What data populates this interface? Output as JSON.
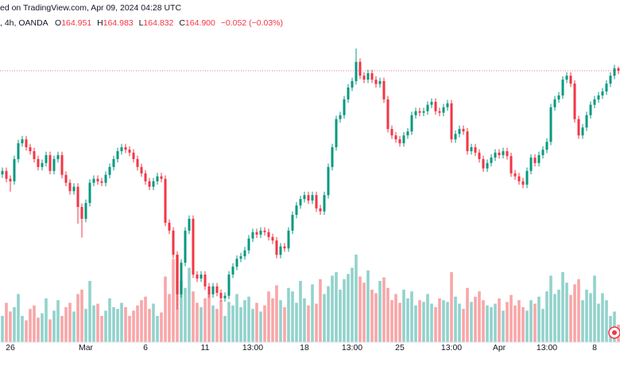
{
  "chart_data": {
    "type": "candlestick",
    "header": {
      "source": "ed on TradingView.com, Apr 09, 2024 04:28 UTC",
      "symbol": ", 4h, OANDA"
    },
    "legend": {
      "labels": [
        "O",
        "H",
        "L",
        "C"
      ],
      "values": [
        "164.951",
        "164.983",
        "164.832",
        "164.900"
      ],
      "change": "−0.052 (−0.03%)"
    },
    "categories": [
      null,
      null,
      "26",
      null,
      null,
      null,
      null,
      null,
      null,
      null,
      null,
      null,
      null,
      null,
      null,
      null,
      null,
      null,
      null,
      null,
      null,
      "Mar",
      null,
      null,
      null,
      null,
      null,
      null,
      null,
      null,
      null,
      null,
      null,
      null,
      null,
      null,
      "6",
      null,
      null,
      null,
      null,
      null,
      null,
      null,
      null,
      null,
      null,
      null,
      null,
      null,
      null,
      "11",
      null,
      null,
      null,
      null,
      null,
      null,
      null,
      null,
      null,
      null,
      null,
      "13:00",
      null,
      null,
      null,
      null,
      null,
      null,
      null,
      null,
      null,
      null,
      null,
      null,
      "18",
      null,
      null,
      null,
      null,
      null,
      null,
      null,
      null,
      null,
      null,
      null,
      "13:00",
      null,
      null,
      null,
      null,
      null,
      null,
      null,
      null,
      null,
      null,
      null,
      "25",
      null,
      null,
      null,
      null,
      null,
      null,
      null,
      null,
      null,
      null,
      null,
      null,
      "13:00",
      null,
      null,
      null,
      null,
      null,
      null,
      null,
      null,
      null,
      null,
      null,
      "Apr",
      null,
      null,
      null,
      null,
      null,
      null,
      null,
      null,
      null,
      null,
      null,
      "13:00",
      null,
      null,
      null,
      null,
      null,
      null,
      null,
      null,
      null,
      null,
      null,
      "8",
      null,
      null,
      null,
      null,
      null,
      null
    ],
    "open": [
      162.8,
      162.87,
      162.71,
      162.66,
      163.11,
      163.43,
      163.51,
      163.35,
      163.27,
      163.11,
      162.95,
      163.03,
      163.19,
      162.87,
      163.11,
      163.19,
      162.79,
      162.63,
      162.46,
      162.55,
      162.14,
      161.9,
      162.22,
      162.63,
      162.71,
      162.66,
      162.63,
      162.79,
      162.95,
      163.11,
      163.27,
      163.35,
      163.3,
      163.24,
      163.11,
      162.95,
      162.82,
      162.66,
      162.55,
      162.66,
      162.76,
      162.71,
      161.82,
      161.66,
      161.17,
      160.37,
      161.01,
      161.66,
      161.9,
      160.77,
      160.69,
      160.77,
      160.53,
      160.37,
      160.53,
      160.4,
      160.29,
      160.34,
      160.77,
      160.93,
      161.09,
      161.14,
      161.26,
      161.5,
      161.63,
      161.58,
      161.66,
      161.63,
      161.53,
      161.46,
      161.17,
      161.34,
      161.3,
      161.66,
      161.98,
      162.17,
      162.3,
      162.38,
      162.27,
      162.38,
      162.11,
      162.05,
      162.38,
      162.95,
      163.35,
      163.92,
      164.0,
      164.32,
      164.56,
      164.69,
      165.08,
      164.8,
      164.72,
      164.85,
      164.72,
      164.63,
      164.69,
      164.32,
      163.72,
      163.59,
      163.51,
      163.43,
      163.59,
      163.67,
      164.0,
      164.08,
      164.05,
      164.08,
      164.21,
      164.27,
      164.08,
      164.05,
      164.16,
      164.24,
      163.51,
      163.62,
      163.72,
      163.67,
      163.27,
      163.35,
      163.24,
      163.11,
      162.92,
      163.03,
      163.14,
      163.24,
      163.19,
      163.27,
      163.17,
      162.82,
      162.76,
      162.66,
      162.59,
      162.87,
      163.14,
      163.03,
      163.19,
      163.3,
      163.46,
      164.16,
      164.32,
      164.4,
      164.72,
      164.8,
      164.64,
      163.92,
      163.59,
      163.75,
      164.0,
      164.21,
      164.32,
      164.4,
      164.48,
      164.64,
      164.8,
      164.951
    ],
    "high": [
      162.94,
      162.94,
      162.78,
      163.18,
      163.5,
      163.58,
      163.58,
      163.42,
      163.34,
      163.18,
      163.1,
      163.26,
      163.26,
      163.18,
      163.26,
      163.26,
      162.86,
      162.7,
      162.62,
      162.62,
      162.21,
      162.29,
      162.7,
      162.78,
      162.78,
      162.73,
      162.86,
      163.02,
      163.18,
      163.34,
      163.42,
      163.42,
      163.37,
      163.31,
      163.18,
      163.02,
      162.89,
      162.73,
      162.73,
      162.83,
      162.83,
      162.78,
      161.89,
      161.73,
      161.24,
      161.08,
      161.73,
      161.97,
      161.97,
      160.84,
      160.84,
      160.84,
      160.6,
      160.6,
      160.6,
      160.47,
      160.41,
      160.84,
      161.0,
      161.16,
      161.21,
      161.33,
      161.57,
      161.7,
      161.7,
      161.73,
      161.73,
      161.7,
      161.6,
      161.53,
      161.41,
      161.41,
      161.73,
      162.05,
      162.24,
      162.37,
      162.45,
      162.45,
      162.45,
      162.45,
      162.18,
      162.45,
      163.02,
      163.42,
      163.99,
      164.07,
      164.39,
      164.63,
      164.76,
      165.35,
      165.15,
      164.87,
      164.92,
      164.92,
      164.79,
      164.76,
      164.76,
      164.39,
      163.79,
      163.66,
      163.58,
      163.66,
      163.74,
      164.07,
      164.15,
      164.15,
      164.15,
      164.28,
      164.34,
      164.34,
      164.15,
      164.23,
      164.31,
      164.31,
      163.69,
      163.79,
      163.79,
      163.74,
      163.42,
      163.42,
      163.31,
      163.18,
      163.1,
      163.21,
      163.31,
      163.31,
      163.34,
      163.34,
      163.24,
      162.89,
      162.83,
      162.73,
      162.94,
      163.21,
      163.21,
      163.26,
      163.37,
      163.53,
      164.23,
      164.39,
      164.47,
      164.79,
      164.87,
      164.87,
      164.71,
      163.99,
      163.82,
      164.07,
      164.28,
      164.39,
      164.47,
      164.55,
      164.71,
      164.87,
      165.02,
      164.983
    ],
    "low": [
      162.73,
      162.64,
      162.45,
      162.59,
      163.04,
      163.36,
      163.28,
      163.2,
      163.04,
      162.88,
      162.88,
      162.96,
      162.8,
      162.8,
      163.04,
      162.72,
      162.56,
      162.39,
      162.39,
      161.8,
      161.52,
      161.83,
      162.15,
      162.56,
      162.59,
      162.56,
      162.56,
      162.72,
      162.88,
      163.04,
      163.2,
      163.23,
      163.17,
      163.04,
      162.88,
      162.75,
      162.59,
      162.48,
      162.48,
      162.59,
      162.64,
      161.75,
      161.59,
      161.1,
      160.06,
      160.3,
      160.94,
      161.59,
      160.7,
      160.62,
      160.62,
      160.46,
      160.3,
      160.3,
      160.33,
      160.22,
      160.22,
      160.27,
      160.7,
      160.86,
      161.02,
      161.07,
      161.19,
      161.43,
      161.51,
      161.51,
      161.56,
      161.46,
      161.39,
      161.1,
      161.1,
      161.23,
      161.23,
      161.59,
      161.91,
      162.1,
      162.23,
      162.2,
      162.2,
      162.04,
      161.98,
      161.98,
      162.31,
      162.88,
      163.28,
      163.85,
      163.93,
      164.25,
      164.49,
      164.62,
      164.73,
      164.65,
      164.65,
      164.65,
      164.56,
      164.56,
      164.25,
      163.65,
      163.52,
      163.44,
      163.36,
      163.36,
      163.52,
      163.6,
      163.93,
      163.98,
      163.98,
      164.01,
      164.14,
      164.01,
      163.98,
      163.98,
      164.09,
      163.44,
      163.44,
      163.55,
      163.6,
      163.2,
      163.2,
      163.17,
      163.04,
      162.85,
      162.85,
      162.96,
      163.07,
      163.12,
      163.12,
      163.1,
      162.75,
      162.69,
      162.59,
      162.52,
      162.52,
      162.8,
      162.96,
      162.96,
      163.12,
      163.23,
      163.39,
      164.09,
      164.25,
      164.33,
      164.65,
      164.57,
      163.85,
      163.52,
      163.52,
      163.68,
      163.93,
      164.14,
      164.25,
      164.33,
      164.41,
      164.57,
      164.73,
      164.832
    ],
    "close": [
      162.87,
      162.71,
      162.66,
      163.11,
      163.43,
      163.51,
      163.35,
      163.27,
      163.11,
      162.95,
      163.03,
      163.19,
      162.87,
      163.11,
      163.19,
      162.79,
      162.63,
      162.46,
      162.55,
      162.14,
      161.9,
      162.22,
      162.63,
      162.71,
      162.66,
      162.63,
      162.79,
      162.95,
      163.11,
      163.27,
      163.35,
      163.3,
      163.24,
      163.11,
      162.95,
      162.82,
      162.66,
      162.55,
      162.66,
      162.76,
      162.71,
      161.82,
      161.66,
      161.17,
      160.37,
      161.01,
      161.66,
      161.9,
      160.77,
      160.69,
      160.77,
      160.53,
      160.37,
      160.53,
      160.4,
      160.29,
      160.34,
      160.77,
      160.93,
      161.09,
      161.14,
      161.26,
      161.5,
      161.63,
      161.58,
      161.66,
      161.63,
      161.53,
      161.46,
      161.17,
      161.34,
      161.3,
      161.66,
      161.98,
      162.17,
      162.3,
      162.38,
      162.27,
      162.38,
      162.11,
      162.05,
      162.38,
      162.95,
      163.35,
      163.92,
      164.0,
      164.32,
      164.56,
      164.69,
      165.08,
      164.8,
      164.72,
      164.85,
      164.72,
      164.63,
      164.69,
      164.32,
      163.72,
      163.59,
      163.51,
      163.43,
      163.59,
      163.67,
      164.0,
      164.08,
      164.05,
      164.08,
      164.21,
      164.27,
      164.08,
      164.05,
      164.16,
      164.24,
      163.51,
      163.62,
      163.72,
      163.67,
      163.27,
      163.35,
      163.24,
      163.11,
      162.92,
      163.03,
      163.14,
      163.24,
      163.19,
      163.27,
      163.17,
      162.82,
      162.76,
      162.66,
      162.59,
      162.87,
      163.14,
      163.03,
      163.19,
      163.3,
      163.46,
      164.16,
      164.32,
      164.4,
      164.72,
      164.8,
      164.64,
      163.92,
      163.59,
      163.75,
      164.0,
      164.21,
      164.32,
      164.4,
      164.48,
      164.64,
      164.8,
      164.95,
      164.9
    ],
    "volume": [
      30,
      45,
      35,
      40,
      55,
      30,
      25,
      38,
      42,
      28,
      33,
      50,
      26,
      36,
      48,
      30,
      40,
      45,
      35,
      55,
      60,
      38,
      70,
      42,
      44,
      30,
      36,
      50,
      40,
      38,
      45,
      40,
      30,
      36,
      42,
      48,
      52,
      38,
      44,
      30,
      34,
      75,
      55,
      95,
      100,
      70,
      62,
      85,
      58,
      45,
      40,
      50,
      55,
      42,
      38,
      48,
      30,
      46,
      42,
      55,
      40,
      48,
      52,
      38,
      45,
      35,
      42,
      58,
      50,
      65,
      48,
      40,
      62,
      58,
      45,
      70,
      50,
      42,
      66,
      44,
      72,
      55,
      64,
      76,
      80,
      60,
      72,
      78,
      85,
      100,
      75,
      68,
      82,
      60,
      56,
      70,
      74,
      62,
      48,
      55,
      45,
      60,
      50,
      58,
      42,
      48,
      46,
      55,
      44,
      40,
      50,
      48,
      46,
      80,
      52,
      44,
      38,
      62,
      46,
      52,
      58,
      48,
      42,
      40,
      44,
      50,
      36,
      46,
      54,
      42,
      48,
      40,
      36,
      48,
      44,
      52,
      38,
      58,
      76,
      55,
      60,
      80,
      68,
      54,
      66,
      72,
      48,
      60,
      56,
      76,
      44,
      56,
      48,
      30,
      35,
      20
    ],
    "ylim": [
      159.4,
      165.85
    ],
    "vlim": [
      0,
      100
    ],
    "up_color": "#089981",
    "down_color": "#f23645",
    "volume_up_color": "#92d2cc",
    "volume_down_color": "#f8a6a8",
    "price_line": true
  }
}
